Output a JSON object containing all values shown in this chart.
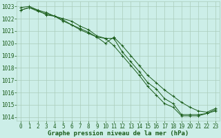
{
  "background_color": "#cceee8",
  "grid_color": "#aaccbb",
  "line_color": "#1a5c1a",
  "x": [
    0,
    1,
    2,
    3,
    4,
    5,
    6,
    7,
    8,
    9,
    10,
    11,
    12,
    13,
    14,
    15,
    16,
    17,
    18,
    19,
    20,
    21,
    22,
    23
  ],
  "series1": [
    1022.7,
    1022.9,
    1022.6,
    1022.4,
    1022.2,
    1022.0,
    1021.8,
    1021.4,
    1021.1,
    1020.6,
    1020.4,
    1020.4,
    1019.3,
    1018.5,
    1017.7,
    1016.8,
    1016.3,
    1015.5,
    1015.1,
    1014.2,
    1014.2,
    1014.2,
    1014.3,
    1014.6
  ],
  "series2": [
    1022.9,
    1023.0,
    1022.7,
    1022.3,
    1022.2,
    1021.9,
    1021.5,
    1021.1,
    1020.8,
    1020.5,
    1020.0,
    1020.5,
    1019.8,
    1019.0,
    1018.2,
    1017.4,
    1016.8,
    1016.2,
    1015.7,
    1015.2,
    1014.8,
    1014.5,
    1014.4,
    1014.7
  ],
  "series3": [
    1022.7,
    1022.9,
    1022.7,
    1022.5,
    1022.2,
    1021.8,
    1021.5,
    1021.2,
    1020.9,
    1020.5,
    1020.4,
    1019.8,
    1019.0,
    1018.2,
    1017.4,
    1016.5,
    1015.8,
    1015.1,
    1014.8,
    1014.1,
    1014.1,
    1014.1,
    1014.3,
    1014.5
  ],
  "ylim": [
    1013.7,
    1023.4
  ],
  "yticks": [
    1014,
    1015,
    1016,
    1017,
    1018,
    1019,
    1020,
    1021,
    1022,
    1023
  ],
  "xlabel": "Graphe pression niveau de la mer (hPa)",
  "tick_fontsize": 5.5,
  "label_fontsize": 6.5
}
